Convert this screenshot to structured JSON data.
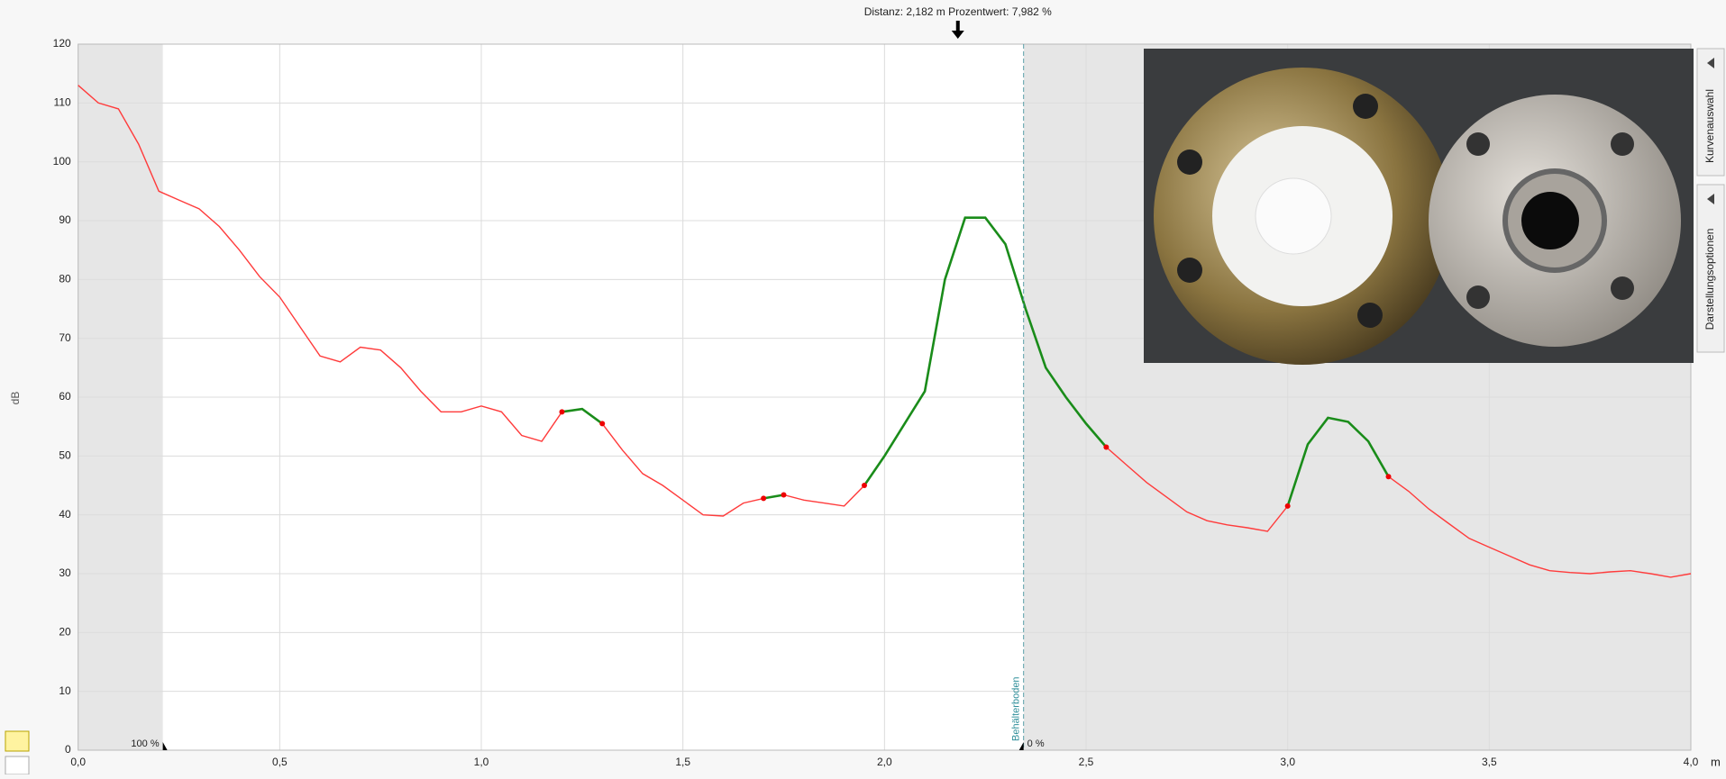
{
  "chart_data": {
    "type": "line",
    "y_label": "dB",
    "x_unit": "m",
    "x": [
      0.0,
      0.05,
      0.1,
      0.15,
      0.2,
      0.25,
      0.3,
      0.35,
      0.4,
      0.45,
      0.5,
      0.55,
      0.6,
      0.65,
      0.7,
      0.75,
      0.8,
      0.85,
      0.9,
      0.95,
      1.0,
      1.05,
      1.1,
      1.15,
      1.2,
      1.25,
      1.3,
      1.35,
      1.4,
      1.45,
      1.5,
      1.55,
      1.6,
      1.65,
      1.7,
      1.75,
      1.8,
      1.85,
      1.9,
      1.95,
      2.0,
      2.05,
      2.1,
      2.15,
      2.2,
      2.25,
      2.3,
      2.35,
      2.4,
      2.45,
      2.5,
      2.55,
      2.6,
      2.65,
      2.7,
      2.75,
      2.8,
      2.85,
      2.9,
      2.95,
      3.0,
      3.05,
      3.1,
      3.15,
      3.2,
      3.25,
      3.3,
      3.35,
      3.4,
      3.45,
      3.5,
      3.55,
      3.6,
      3.65,
      3.7,
      3.75,
      3.8,
      3.85,
      3.9,
      3.95,
      4.0
    ],
    "series": [
      {
        "color": "#ff3b3b",
        "values": [
          113,
          110,
          109,
          103,
          95,
          93.5,
          92,
          89,
          85,
          80.5,
          77,
          72,
          67,
          66,
          68.5,
          68,
          65,
          61,
          57.5,
          57.5,
          58.5,
          57.5,
          53.5,
          52.5,
          57.5,
          58,
          55.5,
          51,
          47,
          45,
          42.5,
          40,
          39.8,
          42,
          42.8,
          43.4,
          42.5,
          42,
          41.5,
          45,
          50,
          55.5,
          61,
          80,
          90.5,
          90.5,
          86,
          75,
          65,
          60,
          55.5,
          51.5,
          48.5,
          45.5,
          43,
          40.5,
          39,
          38.3,
          37.8,
          37.2,
          41.5,
          52,
          56.5,
          55.8,
          52.5,
          46.5,
          44,
          41,
          38.5,
          36,
          34.5,
          33,
          31.5,
          30.5,
          30.2,
          30,
          30.3,
          30.5,
          30,
          29.4,
          30
        ]
      },
      {
        "color": "#1a8c1a",
        "values": [
          null,
          null,
          null,
          null,
          null,
          null,
          null,
          null,
          null,
          null,
          null,
          null,
          null,
          null,
          null,
          null,
          null,
          null,
          null,
          null,
          null,
          null,
          null,
          null,
          57.5,
          58,
          55.5,
          null,
          null,
          null,
          null,
          null,
          null,
          null,
          42.8,
          43.4,
          null,
          null,
          null,
          45,
          50,
          55.5,
          61,
          80,
          90.5,
          90.5,
          86,
          75,
          65,
          60,
          55.5,
          51.5,
          null,
          null,
          null,
          null,
          null,
          null,
          null,
          null,
          41.5,
          52,
          56.5,
          55.8,
          52.5,
          46.5,
          null,
          null,
          null,
          null,
          null,
          null,
          null,
          null,
          null,
          null,
          null,
          null,
          null,
          null,
          null
        ]
      }
    ],
    "xlim": [
      0,
      4.0
    ],
    "ylim": [
      0,
      120
    ],
    "xticks": [
      {
        "value": 0,
        "label": "0,0"
      },
      {
        "value": 0.5,
        "label": "0,5"
      },
      {
        "value": 1.0,
        "label": "1,0"
      },
      {
        "value": 1.5,
        "label": "1,5"
      },
      {
        "value": 2.0,
        "label": "2,0"
      },
      {
        "value": 2.5,
        "label": "2,5"
      },
      {
        "value": 3.0,
        "label": "3,0"
      },
      {
        "value": 3.5,
        "label": "3,5"
      },
      {
        "value": 4.0,
        "label": "4,0"
      }
    ],
    "yticks": [
      0,
      10,
      20,
      30,
      40,
      50,
      60,
      70,
      80,
      90,
      100,
      110,
      120
    ],
    "grid": true,
    "cursor": {
      "label": "Distanz: 2,182 m Prozentwert: 7,982 %",
      "x": 2.182
    },
    "block_start": {
      "label": "100 %",
      "x": 0.21
    },
    "tank_bottom": {
      "label": "Behälterboden",
      "percent_label": "0 %",
      "x": 2.345
    }
  },
  "side_tabs": [
    "Kurvenauswahl",
    "Darstellungsoptionen"
  ]
}
